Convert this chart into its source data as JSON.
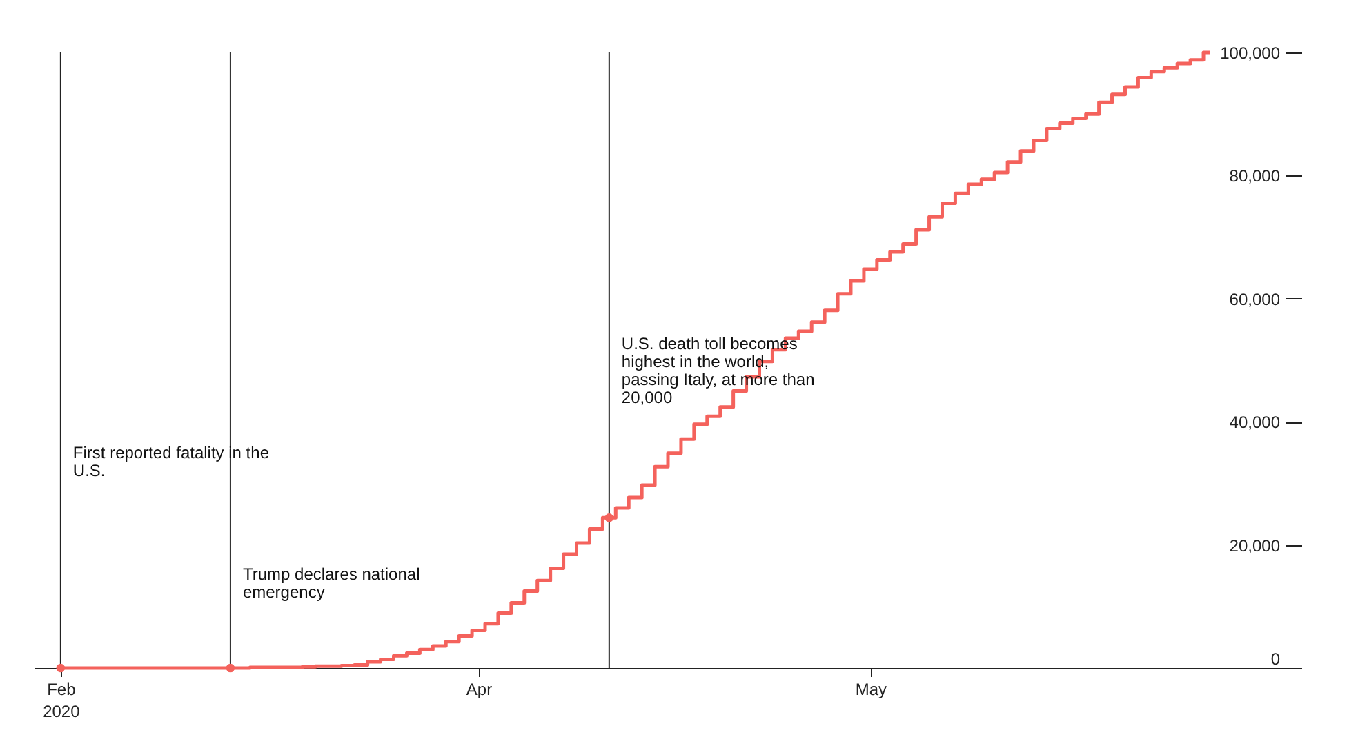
{
  "chart_data": {
    "type": "step",
    "grid": false,
    "xlim": [
      "2020-02-27",
      "2020-06-03"
    ],
    "xticks": [
      {
        "value": "2020-02-29",
        "label": "Feb 2020"
      },
      {
        "value": "2020-04-01",
        "label": "Apr"
      },
      {
        "value": "2020-05-01",
        "label": "May"
      }
    ],
    "ylim": [
      0,
      100000
    ],
    "yticks": [
      0,
      {
        "value": 20000,
        "label": "20,000"
      },
      {
        "value": 40000,
        "label": "40,000"
      },
      {
        "value": 60000,
        "label": "60,000"
      },
      {
        "value": 80000,
        "label": "80,000"
      },
      {
        "value": 100000,
        "label": "100,000"
      }
    ],
    "ref_lines": [
      {
        "axis": "x",
        "value": "2020-02-29",
        "label": "First reported fatality in the U.S.",
        "color": "#222222"
      },
      {
        "axis": "x",
        "value": "2020-03-13",
        "label": "Trump declares national emergency",
        "color": "#222222"
      },
      {
        "axis": "x",
        "value": "2020-04-11",
        "label": "U.S. death toll becomes highest in the world, passing Italy, at more than 20,000",
        "color": "#222222"
      }
    ],
    "series": [
      {
        "color": "#f4625c",
        "x": [
          "2020-02-29",
          "2020-03-01",
          "2020-03-02",
          "2020-03-03",
          "2020-03-04",
          "2020-03-05",
          "2020-03-06",
          "2020-03-07",
          "2020-03-08",
          "2020-03-09",
          "2020-03-10",
          "2020-03-11",
          "2020-03-12",
          "2020-03-13",
          "2020-03-14",
          "2020-03-15",
          "2020-03-16",
          "2020-03-17",
          "2020-03-18",
          "2020-03-19",
          "2020-03-20",
          "2020-03-21",
          "2020-03-22",
          "2020-03-23",
          "2020-03-24",
          "2020-03-25",
          "2020-03-26",
          "2020-03-27",
          "2020-03-28",
          "2020-03-29",
          "2020-03-30",
          "2020-03-31",
          "2020-04-01",
          "2020-04-02",
          "2020-04-03",
          "2020-04-04",
          "2020-04-05",
          "2020-04-06",
          "2020-04-07",
          "2020-04-08",
          "2020-04-09",
          "2020-04-10",
          "2020-04-11",
          "2020-04-12",
          "2020-04-13",
          "2020-04-14",
          "2020-04-15",
          "2020-04-16",
          "2020-04-17",
          "2020-04-18",
          "2020-04-19",
          "2020-04-20",
          "2020-04-21",
          "2020-04-22",
          "2020-04-23",
          "2020-04-24",
          "2020-04-25",
          "2020-04-26",
          "2020-04-27",
          "2020-04-28",
          "2020-04-29",
          "2020-04-30",
          "2020-05-01",
          "2020-05-02",
          "2020-05-03",
          "2020-05-04",
          "2020-05-05",
          "2020-05-06",
          "2020-05-07",
          "2020-05-08",
          "2020-05-09",
          "2020-05-10",
          "2020-05-11",
          "2020-05-12",
          "2020-05-13",
          "2020-05-14",
          "2020-05-15",
          "2020-05-16",
          "2020-05-17",
          "2020-05-18",
          "2020-05-19",
          "2020-05-20",
          "2020-05-21",
          "2020-05-22",
          "2020-05-23",
          "2020-05-24",
          "2020-05-25",
          "2020-05-26",
          "2020-05-27"
        ],
        "values": [
          0,
          0,
          0,
          0,
          0,
          0,
          0,
          0,
          0,
          0,
          0,
          0,
          0,
          0,
          0,
          100,
          100,
          100,
          100,
          200,
          300,
          300,
          400,
          500,
          1000,
          1400,
          2000,
          2400,
          3000,
          3600,
          4300,
          5200,
          6100,
          7200,
          8900,
          10600,
          12500,
          14200,
          16200,
          18500,
          20300,
          22600,
          24400,
          26000,
          27700,
          29700,
          32700,
          34900,
          37200,
          39600,
          40900,
          42400,
          45000,
          47300,
          49800,
          51700,
          53600,
          54700,
          56200,
          58100,
          60800,
          62900,
          64800,
          66300,
          67600,
          68900,
          71200,
          73300,
          75500,
          77100,
          78600,
          79400,
          80500,
          82200,
          84000,
          85700,
          87600,
          88500,
          89300,
          90000,
          91900,
          93200,
          94400,
          95900,
          96900,
          97500,
          98200,
          98800,
          100000
        ]
      },
      {
        "type": "scatter",
        "marker": "circle",
        "color": "#f4625c",
        "x": [
          "2020-02-29",
          "2020-03-13",
          "2020-04-11"
        ],
        "values": [
          0,
          0,
          24400
        ]
      }
    ]
  }
}
